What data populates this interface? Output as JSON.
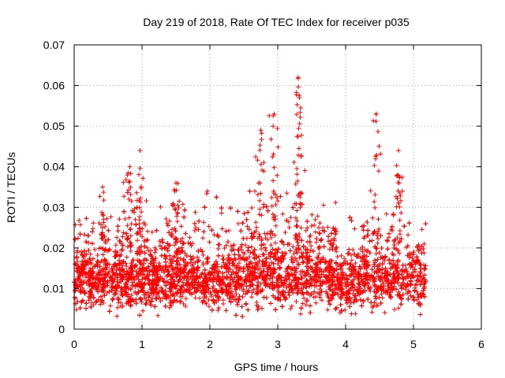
{
  "chart_data": {
    "type": "scatter",
    "title": "Day 219 of 2018, Rate Of TEC Index for receiver p035",
    "xlabel": "GPS time / hours",
    "ylabel": "ROTI / TECUs",
    "xlim": [
      0,
      6
    ],
    "ylim": [
      0,
      0.07
    ],
    "x_ticks": [
      "0",
      "1",
      "2",
      "3",
      "4",
      "5",
      "6"
    ],
    "y_ticks": [
      "0",
      "0.01",
      "0.02",
      "0.03",
      "0.04",
      "0.05",
      "0.06",
      "0.07"
    ],
    "grid": true,
    "marker": "+",
    "color": "#ff0000",
    "series": [
      {
        "name": "ROTI",
        "x_range": [
          0,
          5.18
        ],
        "baseline_level": 0.012,
        "typical_spread": [
          0.005,
          0.02
        ],
        "peaks": [
          {
            "x": 0.42,
            "y": 0.035
          },
          {
            "x": 0.82,
            "y": 0.04
          },
          {
            "x": 0.97,
            "y": 0.044
          },
          {
            "x": 1.5,
            "y": 0.036
          },
          {
            "x": 2.75,
            "y": 0.049
          },
          {
            "x": 2.95,
            "y": 0.053
          },
          {
            "x": 3.3,
            "y": 0.062
          },
          {
            "x": 3.32,
            "y": 0.057
          },
          {
            "x": 4.45,
            "y": 0.053
          },
          {
            "x": 4.78,
            "y": 0.044
          }
        ]
      }
    ]
  }
}
